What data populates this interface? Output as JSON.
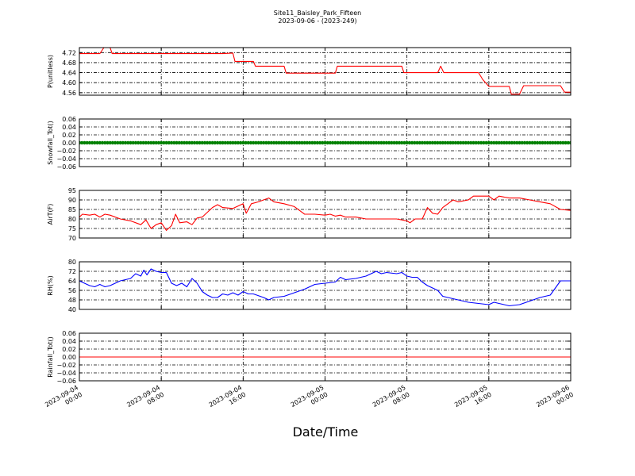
{
  "title": "Site11_Baisley_Park_Fifteen",
  "subtitle": "2023-09-06 - (2023-249)",
  "xlabel": "Date/Time",
  "x_ticks": [
    {
      "line1": "2023-09-04",
      "line2": "00:00",
      "hours": 0
    },
    {
      "line1": "2023-09-04",
      "line2": "08:00",
      "hours": 8
    },
    {
      "line1": "2023-09-04",
      "line2": "16:00",
      "hours": 16
    },
    {
      "line1": "2023-09-05",
      "line2": "00:00",
      "hours": 24
    },
    {
      "line1": "2023-09-05",
      "line2": "08:00",
      "hours": 32
    },
    {
      "line1": "2023-09-05",
      "line2": "16:00",
      "hours": 40
    },
    {
      "line1": "2023-09-06",
      "line2": "00:00",
      "hours": 48
    }
  ],
  "chart_data": [
    {
      "type": "line",
      "ylabel": "P(unitless)",
      "ylim": [
        4.55,
        4.74
      ],
      "yticks": [
        "4.72",
        "4.68",
        "4.64",
        "4.60",
        "4.56"
      ],
      "ytick_values": [
        4.72,
        4.68,
        4.64,
        4.6,
        4.56
      ],
      "grid": true,
      "series": [
        {
          "color": "#ff0000",
          "style": "line",
          "points": [
            [
              0,
              4.716
            ],
            [
              2,
              4.716
            ],
            [
              2.4,
              4.74
            ],
            [
              3,
              4.74
            ],
            [
              3.2,
              4.716
            ],
            [
              8,
              4.716
            ],
            [
              14,
              4.716
            ],
            [
              15,
              4.718
            ],
            [
              15.2,
              4.685
            ],
            [
              17,
              4.685
            ],
            [
              17.2,
              4.666
            ],
            [
              20,
              4.666
            ],
            [
              20.2,
              4.638
            ],
            [
              25,
              4.638
            ],
            [
              25.2,
              4.666
            ],
            [
              31.5,
              4.666
            ],
            [
              31.7,
              4.64
            ],
            [
              35,
              4.64
            ],
            [
              35.3,
              4.666
            ],
            [
              35.6,
              4.64
            ],
            [
              39,
              4.64
            ],
            [
              39.4,
              4.613
            ],
            [
              40,
              4.585
            ],
            [
              42,
              4.585
            ],
            [
              42.2,
              4.554
            ],
            [
              43,
              4.554
            ],
            [
              43.4,
              4.588
            ],
            [
              47,
              4.588
            ],
            [
              47.4,
              4.562
            ],
            [
              48,
              4.562
            ]
          ]
        }
      ]
    },
    {
      "type": "scatter",
      "ylabel": "Snowfall_Tot()",
      "ylim": [
        -0.06,
        0.06
      ],
      "yticks": [
        "0.06",
        "0.04",
        "0.02",
        "0.00",
        "−0.02",
        "−0.04",
        "−0.06"
      ],
      "ytick_values": [
        0.06,
        0.04,
        0.02,
        0.0,
        -0.02,
        -0.04,
        -0.06
      ],
      "grid": true,
      "series": [
        {
          "color": "#008000",
          "style": "markers",
          "constant": 0.0
        }
      ]
    },
    {
      "type": "line",
      "ylabel": "AirT(F)",
      "ylim": [
        70,
        95
      ],
      "yticks": [
        "95",
        "90",
        "85",
        "80",
        "75",
        "70"
      ],
      "ytick_values": [
        95,
        90,
        85,
        80,
        75,
        70
      ],
      "grid": true,
      "series": [
        {
          "color": "#ff0000",
          "style": "line",
          "points": [
            [
              0,
              81
            ],
            [
              0.3,
              82.5
            ],
            [
              1,
              82
            ],
            [
              1.5,
              82.5
            ],
            [
              2,
              81
            ],
            [
              2.5,
              82.5
            ],
            [
              3,
              82
            ],
            [
              4,
              80
            ],
            [
              5,
              79
            ],
            [
              6,
              77
            ],
            [
              6.5,
              79.5
            ],
            [
              7,
              75
            ],
            [
              7.5,
              77
            ],
            [
              8,
              78
            ],
            [
              8.5,
              74
            ],
            [
              9,
              76.5
            ],
            [
              9.4,
              82.5
            ],
            [
              9.8,
              78
            ],
            [
              10.5,
              78.5
            ],
            [
              11,
              77
            ],
            [
              11.5,
              80.5
            ],
            [
              12,
              81
            ],
            [
              13,
              86
            ],
            [
              13.5,
              87.5
            ],
            [
              14,
              86
            ],
            [
              15,
              85.5
            ],
            [
              16,
              88
            ],
            [
              16.3,
              83
            ],
            [
              16.8,
              88
            ],
            [
              17.5,
              89
            ],
            [
              18,
              90
            ],
            [
              18.5,
              91
            ],
            [
              19,
              89
            ],
            [
              20,
              88
            ],
            [
              21,
              86.5
            ],
            [
              22,
              82.5
            ],
            [
              23,
              82.5
            ],
            [
              24,
              82
            ],
            [
              24.5,
              82.5
            ],
            [
              25,
              81.5
            ],
            [
              25.5,
              82
            ],
            [
              26,
              81
            ],
            [
              27,
              81
            ],
            [
              28,
              80
            ],
            [
              29,
              80
            ],
            [
              30,
              80
            ],
            [
              31,
              80
            ],
            [
              32,
              79
            ],
            [
              32.3,
              78
            ],
            [
              32.8,
              80
            ],
            [
              33.5,
              80
            ],
            [
              34,
              86
            ],
            [
              34.5,
              83
            ],
            [
              35,
              82.5
            ],
            [
              35.5,
              86
            ],
            [
              36,
              88
            ],
            [
              36.5,
              90
            ],
            [
              37,
              89
            ],
            [
              38,
              90
            ],
            [
              38.5,
              92
            ],
            [
              39,
              92
            ],
            [
              40,
              92
            ],
            [
              40.5,
              90
            ],
            [
              41,
              92
            ],
            [
              42,
              91
            ],
            [
              43,
              91
            ],
            [
              44,
              90
            ],
            [
              45,
              89
            ],
            [
              46,
              88
            ],
            [
              47,
              85
            ],
            [
              48,
              84.5
            ]
          ]
        }
      ]
    },
    {
      "type": "line",
      "ylabel": "RH(%)",
      "ylim": [
        40,
        80
      ],
      "yticks": [
        "80",
        "72",
        "64",
        "56",
        "48",
        "40"
      ],
      "ytick_values": [
        80,
        72,
        64,
        56,
        48,
        40
      ],
      "grid": true,
      "series": [
        {
          "color": "#0000ff",
          "style": "line",
          "points": [
            [
              0,
              64
            ],
            [
              0.5,
              62
            ],
            [
              1,
              60
            ],
            [
              1.5,
              59
            ],
            [
              2,
              61
            ],
            [
              2.5,
              59
            ],
            [
              3,
              60
            ],
            [
              4,
              64
            ],
            [
              5,
              66
            ],
            [
              5.5,
              70
            ],
            [
              6,
              68
            ],
            [
              6.3,
              73
            ],
            [
              6.6,
              69
            ],
            [
              7,
              74
            ],
            [
              7.5,
              72
            ],
            [
              8,
              71
            ],
            [
              8.5,
              71
            ],
            [
              9,
              62
            ],
            [
              9.5,
              60
            ],
            [
              10,
              62
            ],
            [
              10.5,
              59
            ],
            [
              11,
              66
            ],
            [
              11.5,
              62
            ],
            [
              12,
              55
            ],
            [
              12.5,
              52
            ],
            [
              13,
              50
            ],
            [
              13.5,
              50
            ],
            [
              14,
              53
            ],
            [
              14.5,
              52
            ],
            [
              15,
              54
            ],
            [
              15.5,
              52
            ],
            [
              16,
              55
            ],
            [
              16.5,
              53
            ],
            [
              17,
              53
            ],
            [
              18,
              50
            ],
            [
              18.5,
              48
            ],
            [
              19,
              50
            ],
            [
              20,
              51
            ],
            [
              21,
              54
            ],
            [
              22,
              57
            ],
            [
              23,
              61
            ],
            [
              24,
              62
            ],
            [
              25,
              63
            ],
            [
              25.5,
              67
            ],
            [
              26,
              65
            ],
            [
              27,
              66
            ],
            [
              28,
              68
            ],
            [
              29,
              72
            ],
            [
              29.5,
              70
            ],
            [
              30,
              71
            ],
            [
              31,
              70
            ],
            [
              31.5,
              71
            ],
            [
              32,
              68
            ],
            [
              32.5,
              67
            ],
            [
              33,
              67
            ],
            [
              33.5,
              63
            ],
            [
              34,
              60
            ],
            [
              35,
              56
            ],
            [
              35.5,
              51
            ],
            [
              36,
              50
            ],
            [
              37,
              48
            ],
            [
              38,
              46
            ],
            [
              39,
              45
            ],
            [
              40,
              44
            ],
            [
              40.5,
              46
            ],
            [
              41,
              45
            ],
            [
              41.5,
              44
            ],
            [
              42,
              43
            ],
            [
              43,
              44
            ],
            [
              44,
              47
            ],
            [
              45,
              50
            ],
            [
              46,
              52
            ],
            [
              46.5,
              58
            ],
            [
              47,
              64
            ],
            [
              48,
              64
            ]
          ]
        }
      ]
    },
    {
      "type": "line",
      "ylabel": "Rainfall_Tot()",
      "ylim": [
        -0.06,
        0.06
      ],
      "yticks": [
        "0.06",
        "0.04",
        "0.02",
        "0.00",
        "−0.02",
        "−0.04",
        "−0.06"
      ],
      "ytick_values": [
        0.06,
        0.04,
        0.02,
        0.0,
        -0.02,
        -0.04,
        -0.06
      ],
      "grid": true,
      "series": [
        {
          "color": "#ff0000",
          "style": "line",
          "points": [
            [
              0,
              0
            ],
            [
              48,
              0
            ]
          ]
        }
      ]
    }
  ]
}
